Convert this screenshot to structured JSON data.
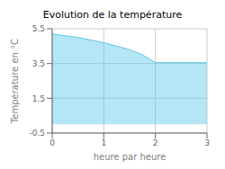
{
  "chart_data": {
    "type": "area",
    "title": "Evolution de la température",
    "xlabel": "heure par heure",
    "ylabel": "Température en °C",
    "x": [
      0,
      0.25,
      0.5,
      0.75,
      1.0,
      1.25,
      1.5,
      1.75,
      2.0,
      2.25,
      2.5,
      2.75,
      3.0
    ],
    "values": [
      5.2,
      5.1,
      5.0,
      4.85,
      4.7,
      4.5,
      4.3,
      4.0,
      3.55,
      3.55,
      3.55,
      3.55,
      3.55
    ],
    "color": "#5bc8e8",
    "xlim": [
      0,
      3
    ],
    "ylim": [
      -0.5,
      5.5
    ],
    "xticks": [
      0,
      1,
      2,
      3
    ],
    "yticks": [
      -0.5,
      1.5,
      3.5,
      5.5
    ],
    "grid": true
  }
}
